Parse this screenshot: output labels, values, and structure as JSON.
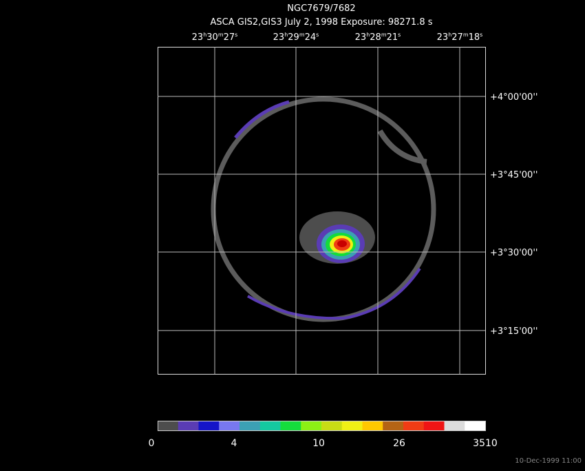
{
  "header": {
    "title": "NGC7679/7682",
    "subtitle": "ASCA GIS2,GIS3 July 2, 1998 Exposure: 98271.8 s"
  },
  "ra_labels": [
    [
      "23",
      "h",
      "30",
      "m",
      "27",
      "s"
    ],
    [
      "23",
      "h",
      "29",
      "m",
      "24",
      "s"
    ],
    [
      "23",
      "h",
      "28",
      "m",
      "21",
      "s"
    ],
    [
      "23",
      "h",
      "27",
      "m",
      "18",
      "s"
    ]
  ],
  "dec_labels": [
    "+4°00'00''",
    "+3°45'00''",
    "+3°30'00''",
    "+3°15'00''"
  ],
  "colorbar": {
    "colors": [
      "#4d4d4d",
      "#5a3cb4",
      "#1414c8",
      "#7878f0",
      "#3ca0b4",
      "#14c8a0",
      "#14dc3c",
      "#8cf014",
      "#c8dc14",
      "#f0f014",
      "#ffc800",
      "#b46414",
      "#f03c14",
      "#f01414",
      "#dcdcdc",
      "#ffffff"
    ],
    "labels": [
      "0",
      "4",
      "10",
      "26",
      "3510"
    ]
  },
  "timestamp": "10-Dec-1999 11:00"
}
